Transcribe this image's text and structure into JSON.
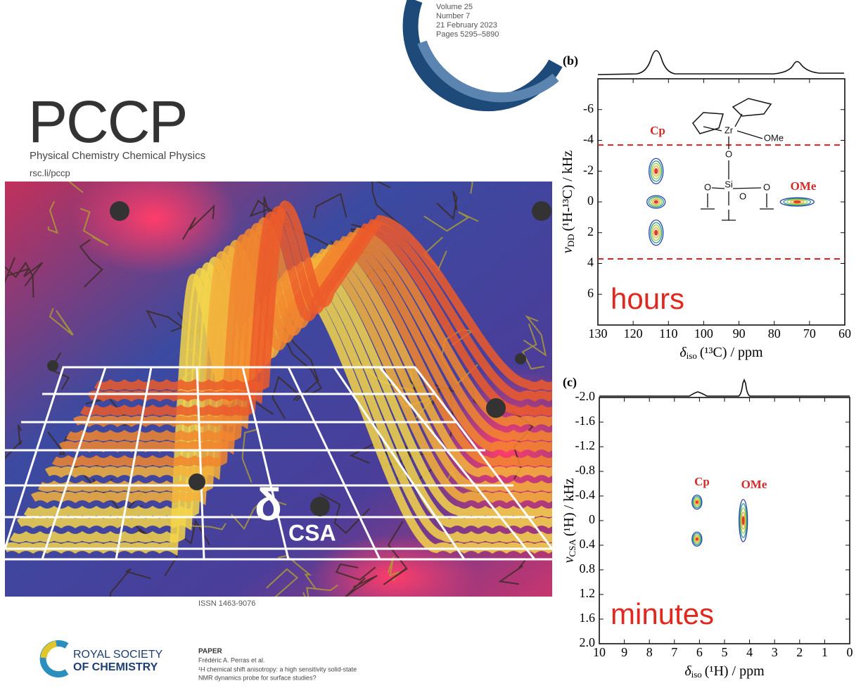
{
  "cover": {
    "issue": [
      "Volume 25",
      "Number 7",
      "21 February 2023",
      "Pages 5295–5890"
    ],
    "journal": "PCCP",
    "journal_full": "Physical Chemistry Chemical Physics",
    "url": "rsc.li/pccp",
    "art_symbol": "δ",
    "art_subscript": "CSA",
    "issn": "ISSN 1463-9076",
    "publisher": [
      "ROYAL SOCIETY",
      "OF CHEMISTRY"
    ],
    "paper_type": "PAPER",
    "authors": "Frédéric A. Perras et al.",
    "paper_title": [
      "¹H chemical shift anisotropy: a high sensitivity solid-state",
      "NMR dynamics probe for surface studies?"
    ]
  },
  "panels": [
    {
      "label": "(b)",
      "xlim": [
        130,
        60
      ],
      "ylim": [
        -8,
        8
      ],
      "xticks": [
        130,
        120,
        110,
        100,
        90,
        80,
        70,
        60
      ],
      "yticks": [
        -6,
        -4,
        -2,
        0,
        2,
        4,
        6
      ],
      "x_label": {
        "symbol": "δ",
        "sub": "iso",
        "text": "(¹³C) / ppm"
      },
      "y_label": {
        "symbol": "ν",
        "sub": "DD",
        "text": "(¹H-¹³C) / kHz"
      },
      "dashed_lines": [
        -3.7,
        3.7
      ],
      "peaks": [
        {
          "x": 113.5,
          "y": -2
        },
        {
          "x": 113.5,
          "y": 0
        },
        {
          "x": 113.5,
          "y": 2
        },
        {
          "x": 73.5,
          "y": 0
        }
      ],
      "peak_labels": [
        "Cp",
        "OMe"
      ],
      "structure_labels": [
        "Zr",
        "OMe",
        "O",
        "Si",
        "O",
        "O",
        "O"
      ],
      "time_label": "hours"
    },
    {
      "label": "(c)",
      "xlim": [
        10,
        0
      ],
      "ylim": [
        -2,
        2
      ],
      "xticks": [
        10,
        9,
        8,
        7,
        6,
        5,
        4,
        3,
        2,
        1,
        0
      ],
      "yticks": [
        {
          "value": -2,
          "label": "-2.0"
        },
        -1.6,
        -1.2,
        -0.8,
        -0.4,
        0,
        0.4,
        0.8,
        1.2,
        1.6,
        {
          "value": 2,
          "label": "2.0"
        }
      ],
      "x_label": {
        "symbol": "δ",
        "sub": "iso",
        "text": "(¹H) / ppm"
      },
      "y_label": {
        "symbol": "ν",
        "sub": "CSA",
        "text": "(¹H) / kHz"
      },
      "dashed_lines": [],
      "peaks": [
        {
          "x": 6.1,
          "y": -0.3
        },
        {
          "x": 6.1,
          "y": 0.3
        },
        {
          "x": 4.25,
          "y": 0
        }
      ],
      "peak_labels": [
        "Cp",
        "OMe"
      ],
      "structure_labels": [],
      "time_label": "minutes"
    }
  ]
}
